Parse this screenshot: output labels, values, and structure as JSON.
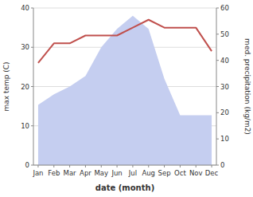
{
  "chart_data": {
    "type": "line",
    "xlabel": "date (month)",
    "ylabel": "max temp (C)",
    "y2label": "med. precipitation (kg/m2)",
    "categories": [
      "Jan",
      "Feb",
      "Mar",
      "Apr",
      "May",
      "Jun",
      "Jul",
      "Aug",
      "Sep",
      "Oct",
      "Nov",
      "Dec"
    ],
    "ylim": [
      0,
      40
    ],
    "yticks": [
      0,
      10,
      20,
      30,
      40
    ],
    "y2lim": [
      0,
      60
    ],
    "y2ticks": [
      0,
      10,
      20,
      30,
      40,
      50,
      60
    ],
    "grid": true,
    "series": [
      {
        "type": "area",
        "axis": "y2",
        "color": "#c5cef0",
        "values": [
          23,
          27,
          30,
          34,
          45,
          52,
          57,
          52,
          33,
          19,
          19,
          19
        ]
      },
      {
        "type": "line",
        "color": "#c0504d",
        "values": [
          26,
          31,
          31,
          33,
          33,
          33,
          35,
          37,
          35,
          35,
          35,
          29
        ]
      }
    ]
  }
}
